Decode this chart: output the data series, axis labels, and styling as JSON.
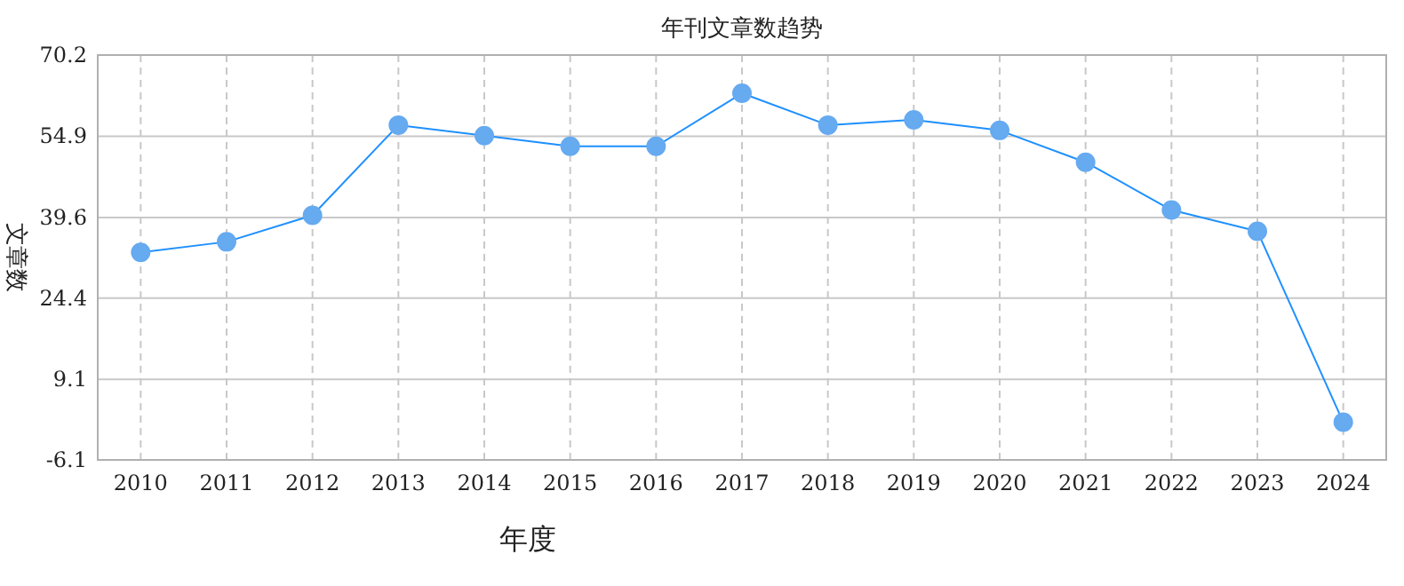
{
  "chart_data": {
    "type": "line",
    "title": "年刊文章数趋势",
    "xlabel": "年度",
    "ylabel": "文章数",
    "categories": [
      "2010",
      "2011",
      "2012",
      "2013",
      "2014",
      "2015",
      "2016",
      "2017",
      "2018",
      "2019",
      "2020",
      "2021",
      "2022",
      "2023",
      "2024"
    ],
    "series": [
      {
        "color": "#1e90ff",
        "values": [
          33,
          35,
          40,
          57,
          55,
          53,
          53,
          63,
          57,
          58,
          56,
          50,
          41,
          37,
          1
        ]
      }
    ],
    "ylim": [
      -6.1,
      70.2
    ],
    "yticks": [
      -6.1,
      9.1,
      24.4,
      39.6,
      54.9,
      70.2
    ],
    "grid": true,
    "marker": "circle"
  }
}
